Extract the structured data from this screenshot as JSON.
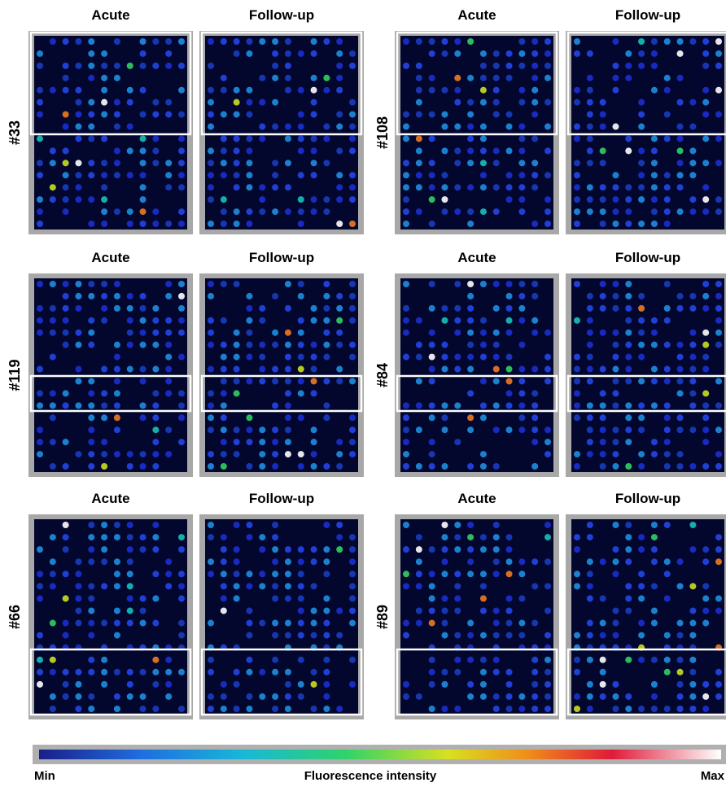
{
  "panels": [
    {
      "id": "#33",
      "images": [
        {
          "label": "Acute"
        },
        {
          "label": "Follow-up"
        }
      ]
    },
    {
      "id": "#108",
      "images": [
        {
          "label": "Acute"
        },
        {
          "label": "Follow-up"
        }
      ]
    },
    {
      "id": "#119",
      "images": [
        {
          "label": "Acute"
        },
        {
          "label": "Follow-up"
        }
      ]
    },
    {
      "id": "#84",
      "images": [
        {
          "label": "Acute"
        },
        {
          "label": "Follow-up"
        }
      ]
    },
    {
      "id": "#66",
      "images": [
        {
          "label": "Acute"
        },
        {
          "label": "Follow-up"
        }
      ]
    },
    {
      "id": "#89",
      "images": [
        {
          "label": "Acute"
        },
        {
          "label": "Follow-up"
        }
      ]
    }
  ],
  "colorbar": {
    "min_label": "Min",
    "title": "Fluorescence intensity",
    "max_label": "Max"
  }
}
